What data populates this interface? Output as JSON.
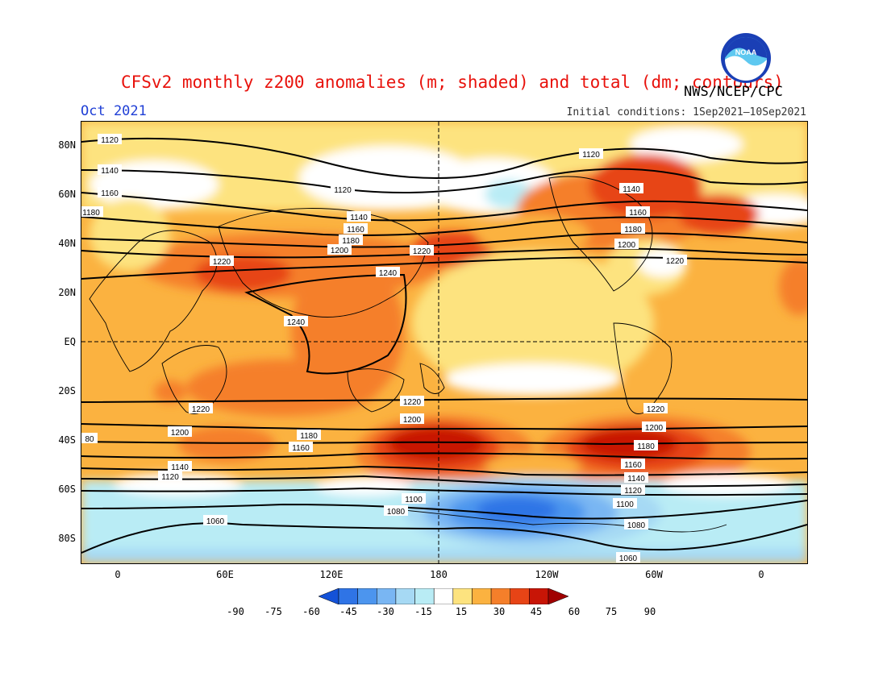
{
  "header": {
    "title": "CFSv2 monthly z200 anomalies (m; shaded) and total (dm; contours)",
    "agency": "NWS/NCEP/CPC",
    "period": "Oct 2021",
    "initial_conditions": "Initial conditions: 1Sep2021–10Sep2021",
    "logo_text": "NOAA"
  },
  "axes": {
    "lat_labels": [
      "80N",
      "60N",
      "40N",
      "20N",
      "EQ",
      "20S",
      "40S",
      "60S",
      "80S"
    ],
    "lon_labels": [
      "0",
      "60E",
      "120E",
      "180",
      "120W",
      "60W",
      "0"
    ]
  },
  "colorbar": {
    "levels": [
      "-90",
      "-75",
      "-60",
      "-45",
      "-30",
      "-15",
      "15",
      "30",
      "45",
      "60",
      "75",
      "90"
    ],
    "colors": [
      "#1452d8",
      "#2f74e6",
      "#4c95ee",
      "#79b6f3",
      "#a6d9f4",
      "#b9ecf5",
      "#ffffff",
      "#fde37f",
      "#fbb240",
      "#f57f2a",
      "#e74416",
      "#c81506",
      "#a00000"
    ]
  },
  "contour_labels": {
    "c1120a": "1120",
    "c1140a": "1140",
    "c1160a": "1160",
    "c1180a": "1180",
    "c1120b": "1120",
    "c1140b": "1140",
    "c1160b": "1160",
    "c1180b": "1180",
    "c1200b": "1200",
    "c1220b": "1220",
    "c1120c": "1120",
    "c1140c": "1140",
    "c1160c": "1160",
    "c1180c": "1180",
    "c1200c": "1200",
    "c1220c": "1220",
    "c1220d": "1220",
    "c1240a": "1240",
    "c1240b": "1240",
    "c1220e": "1220",
    "c1200e": "1200",
    "c1220f": "1220",
    "c1200f": "1200",
    "c1180f": "1180",
    "c1160f": "1160",
    "c1140f": "1140",
    "c1120f": "1120",
    "c1100f": "1100",
    "c1080f": "1080",
    "c1060f": "1060",
    "c1220g": "1220",
    "c1200g": "1200",
    "c1180g": "1180",
    "c1160g": "1160",
    "c1140g": "1140",
    "c1120g": "1120",
    "c1100g": "1100",
    "c1080g": "1080",
    "c1060g": "1060",
    "c80": "80"
  }
}
